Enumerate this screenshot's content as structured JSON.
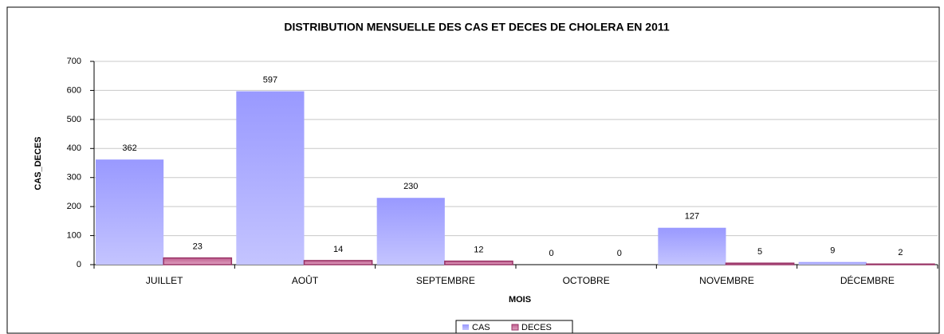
{
  "chart_data": {
    "type": "bar",
    "title": "DISTRIBUTION MENSUELLE DES CAS ET DECES DE CHOLERA EN 2011",
    "x_label": "MOIS",
    "y_label": "CAS_DECES",
    "categories": [
      "JUILLET",
      "AOÛT",
      "SEPTEMBRE",
      "OCTOBRE",
      "NOVEMBRE",
      "DÉCEMBRE"
    ],
    "series": [
      {
        "name": "CAS",
        "color": "#9999ff",
        "values": [
          362,
          597,
          230,
          0,
          127,
          9
        ]
      },
      {
        "name": "DECES",
        "color": "#993366",
        "values": [
          23,
          14,
          12,
          0,
          5,
          2
        ]
      }
    ],
    "ylim": [
      0,
      700
    ],
    "yticks": [
      0,
      100,
      200,
      300,
      400,
      500,
      600,
      700
    ],
    "grid": true,
    "legend": "bottom"
  }
}
